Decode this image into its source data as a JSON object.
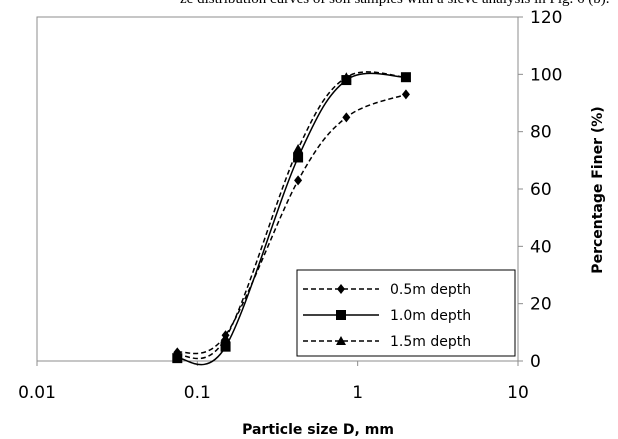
{
  "header_fragment": "ze distribution curves of soil samples with a sieve analysis in Fig. 6 (b).",
  "chart_data": {
    "type": "line",
    "xlabel": "Particle size D, mm",
    "ylabel": "Percentage Finer (%)",
    "xscale": "log",
    "xlim": [
      0.01,
      10
    ],
    "ylim": [
      0,
      120
    ],
    "x_ticks": [
      "0.01",
      "0.1",
      "1",
      "10"
    ],
    "x_tick_values": [
      0.01,
      0.1,
      1,
      10
    ],
    "y_ticks": [
      "0",
      "20",
      "40",
      "60",
      "80",
      "100",
      "120"
    ],
    "y_tick_values": [
      0,
      20,
      40,
      60,
      80,
      100,
      120
    ],
    "y_axis_side": "right",
    "grid": false,
    "legend_position": "bottom-right",
    "series": [
      {
        "name": "0.5m depth",
        "marker": "diamond",
        "line": "dashed",
        "color": "#000000",
        "x": [
          0.075,
          0.15,
          0.425,
          0.85,
          2.0
        ],
        "y": [
          3,
          9,
          63,
          85,
          93
        ]
      },
      {
        "name": "1.0m depth",
        "marker": "square",
        "line": "solid",
        "color": "#000000",
        "x": [
          0.075,
          0.15,
          0.425,
          0.85,
          2.0
        ],
        "y": [
          1,
          5,
          71,
          98,
          99
        ]
      },
      {
        "name": "1.5m depth",
        "marker": "triangle",
        "line": "dashed",
        "color": "#000000",
        "x": [
          0.075,
          0.15,
          0.425,
          0.85,
          2.0
        ],
        "y": [
          2,
          8,
          74,
          99,
          99
        ]
      }
    ]
  }
}
